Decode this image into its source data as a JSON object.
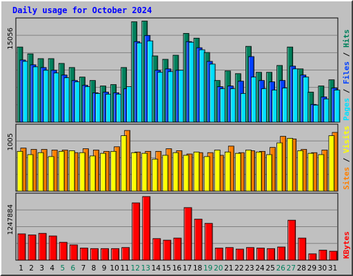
{
  "title": "Daily usage for October 2024",
  "colors": {
    "hits": "#00805c",
    "files": "#0040ff",
    "pages": "#00e0ff",
    "visits": "#ffff00",
    "sites": "#ff8000",
    "kbytes": "#ff0000",
    "title": "#0000ff",
    "weekend_day": "#00805c",
    "grid": "#808080",
    "background": "#c0c0c0"
  },
  "chart_data": [
    {
      "type": "bar",
      "panel": "top",
      "y_max_label": "15056",
      "ylim": [
        0,
        15056
      ],
      "grid": true,
      "legend": [
        "Pages",
        "Files",
        "Hits"
      ],
      "categories": [
        "1",
        "2",
        "3",
        "4",
        "5",
        "6",
        "7",
        "8",
        "9",
        "10",
        "11",
        "12",
        "13",
        "14",
        "15",
        "16",
        "17",
        "18",
        "19",
        "20",
        "21",
        "22",
        "23",
        "24",
        "25",
        "26",
        "27",
        "28",
        "29",
        "30",
        "31"
      ],
      "series": [
        {
          "name": "Hits",
          "values": [
            11000,
            10000,
            9300,
            9300,
            8600,
            8000,
            6600,
            6100,
            5300,
            5500,
            8000,
            14700,
            14800,
            9700,
            9200,
            9800,
            13000,
            12300,
            10200,
            6100,
            7500,
            7100,
            11100,
            7300,
            7300,
            8300,
            11000,
            7800,
            4400,
            5300,
            6200
          ]
        },
        {
          "name": "Files",
          "values": [
            9100,
            8400,
            8000,
            7600,
            6900,
            6100,
            5400,
            4300,
            4400,
            4300,
            4900,
            11800,
            12700,
            7600,
            7800,
            7600,
            11800,
            10900,
            8900,
            5200,
            5300,
            6000,
            9600,
            6100,
            5900,
            6100,
            8200,
            6900,
            2600,
            3700,
            5000
          ]
        },
        {
          "name": "Pages",
          "values": [
            8900,
            8100,
            7600,
            7200,
            6500,
            5900,
            5200,
            4200,
            4100,
            4100,
            5200,
            11600,
            11900,
            7300,
            7400,
            7600,
            11700,
            10600,
            8500,
            4900,
            4900,
            4200,
            6600,
            4900,
            4700,
            5000,
            7800,
            6600,
            2500,
            3400,
            4700
          ]
        }
      ]
    },
    {
      "type": "bar",
      "panel": "middle",
      "y_max_label": "1005",
      "ylim": [
        0,
        1005
      ],
      "grid": true,
      "legend": [
        "Sites",
        "Visits"
      ],
      "categories": [
        "1",
        "2",
        "3",
        "4",
        "5",
        "6",
        "7",
        "8",
        "9",
        "10",
        "11",
        "12",
        "13",
        "14",
        "15",
        "16",
        "17",
        "18",
        "19",
        "20",
        "21",
        "22",
        "23",
        "24",
        "25",
        "26",
        "27",
        "28",
        "29",
        "30",
        "31"
      ],
      "series": [
        {
          "name": "Visits",
          "values": [
            610,
            560,
            590,
            530,
            610,
            620,
            590,
            540,
            580,
            610,
            850,
            590,
            580,
            490,
            550,
            590,
            550,
            600,
            530,
            630,
            600,
            580,
            630,
            600,
            560,
            740,
            810,
            620,
            580,
            560,
            850
          ]
        },
        {
          "name": "Sites",
          "values": [
            660,
            640,
            640,
            630,
            630,
            590,
            650,
            630,
            610,
            680,
            930,
            600,
            610,
            610,
            650,
            620,
            570,
            590,
            590,
            550,
            690,
            590,
            620,
            610,
            670,
            840,
            800,
            640,
            590,
            630,
            900
          ]
        }
      ]
    },
    {
      "type": "bar",
      "panel": "bottom",
      "y_max_label": "1247884",
      "ylim": [
        0,
        1247884
      ],
      "grid": true,
      "legend": [
        "KBytes"
      ],
      "categories": [
        "1",
        "2",
        "3",
        "4",
        "5",
        "6",
        "7",
        "8",
        "9",
        "10",
        "11",
        "12",
        "13",
        "14",
        "15",
        "16",
        "17",
        "18",
        "19",
        "20",
        "21",
        "22",
        "23",
        "24",
        "25",
        "26",
        "27",
        "28",
        "29",
        "30",
        "31"
      ],
      "series": [
        {
          "name": "KBytes",
          "values": [
            500000,
            480000,
            510000,
            460000,
            340000,
            290000,
            230000,
            220000,
            220000,
            220000,
            240000,
            1090000,
            1210000,
            410000,
            380000,
            420000,
            1000000,
            780000,
            700000,
            230000,
            240000,
            210000,
            240000,
            230000,
            220000,
            250000,
            760000,
            420000,
            120000,
            190000,
            170000
          ]
        }
      ]
    }
  ],
  "day_labels": [
    "1",
    "2",
    "3",
    "4",
    "5",
    "6",
    "7",
    "8",
    "9",
    "10",
    "11",
    "12",
    "13",
    "14",
    "15",
    "16",
    "17",
    "18",
    "19",
    "20",
    "21",
    "22",
    "23",
    "24",
    "25",
    "26",
    "27",
    "28",
    "29",
    "30",
    "31"
  ],
  "weekend_days": [
    "5",
    "6",
    "12",
    "13",
    "19",
    "20",
    "26",
    "27"
  ]
}
